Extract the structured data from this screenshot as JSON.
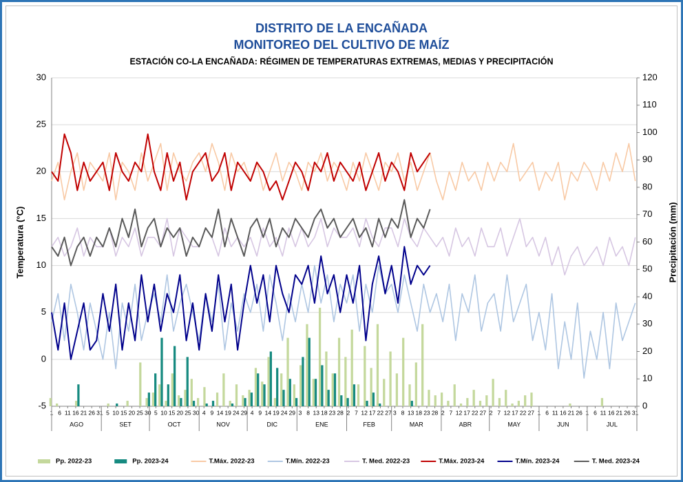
{
  "chart_data": {
    "type": "line",
    "title": "DISTRITO DE LA ENCAÑADA",
    "subtitle": "MONITOREO DEL CULTIVO DE MAÍZ",
    "caption": "ESTACIÓN CO-LA ENCAÑADA: RÉGIMEN DE TEMPERATURAS EXTREMAS, MEDIAS Y PRECIPITACIÓN",
    "ylabel": "Temperatura (°C)",
    "y2label": "Precipitación (mm)",
    "ylim": [
      -5,
      30
    ],
    "yticks": [
      -5,
      0,
      5,
      10,
      15,
      20,
      25,
      30
    ],
    "y2lim": [
      0,
      120
    ],
    "y2ticks": [
      0,
      10,
      20,
      30,
      40,
      50,
      60,
      70,
      80,
      90,
      100,
      110,
      120
    ],
    "xlim": [
      1,
      366
    ],
    "xticks": [
      1,
      6,
      11,
      16,
      21,
      26,
      31,
      {
        "value": 36,
        "label": "5"
      },
      {
        "value": 41,
        "label": "10"
      },
      {
        "value": 46,
        "label": "15"
      },
      {
        "value": 51,
        "label": "20"
      },
      {
        "value": 56,
        "label": "25"
      },
      {
        "value": 61,
        "label": "30"
      },
      {
        "value": 66,
        "label": "5"
      },
      {
        "value": 71,
        "label": "10"
      },
      {
        "value": 76,
        "label": "15"
      },
      {
        "value": 81,
        "label": "20"
      },
      {
        "value": 86,
        "label": "25"
      },
      {
        "value": 91,
        "label": "30"
      },
      {
        "value": 96,
        "label": "4"
      },
      {
        "value": 101,
        "label": "9"
      },
      {
        "value": 106,
        "label": "14"
      },
      {
        "value": 111,
        "label": "19"
      },
      {
        "value": 116,
        "label": "24"
      },
      {
        "value": 121,
        "label": "29"
      },
      {
        "value": 126,
        "label": "4"
      },
      {
        "value": 131,
        "label": "9"
      },
      {
        "value": 136,
        "label": "14"
      },
      {
        "value": 141,
        "label": "19"
      },
      {
        "value": 146,
        "label": "24"
      },
      {
        "value": 151,
        "label": "29"
      },
      {
        "value": 156,
        "label": "3"
      },
      {
        "value": 161,
        "label": "8"
      },
      {
        "value": 166,
        "label": "13"
      },
      {
        "value": 171,
        "label": "18"
      },
      {
        "value": 176,
        "label": "23"
      },
      {
        "value": 181,
        "label": "28"
      },
      {
        "value": 186,
        "label": "2"
      },
      {
        "value": 191,
        "label": "7"
      },
      {
        "value": 196,
        "label": "12"
      },
      {
        "value": 201,
        "label": "17"
      },
      {
        "value": 206,
        "label": "22"
      },
      {
        "value": 211,
        "label": "27"
      },
      {
        "value": 215,
        "label": "3"
      },
      {
        "value": 220,
        "label": "8"
      },
      {
        "value": 225,
        "label": "13"
      },
      {
        "value": 230,
        "label": "18"
      },
      {
        "value": 235,
        "label": "23"
      },
      {
        "value": 240,
        "label": "28"
      },
      {
        "value": 245,
        "label": "2"
      },
      {
        "value": 250,
        "label": "7"
      },
      {
        "value": 255,
        "label": "12"
      },
      {
        "value": 260,
        "label": "17"
      },
      {
        "value": 265,
        "label": "22"
      },
      {
        "value": 270,
        "label": "27"
      },
      {
        "value": 275,
        "label": "2"
      },
      {
        "value": 280,
        "label": "7"
      },
      {
        "value": 285,
        "label": "12"
      },
      {
        "value": 290,
        "label": "17"
      },
      {
        "value": 295,
        "label": "22"
      },
      {
        "value": 300,
        "label": "27"
      },
      {
        "value": 305,
        "label": "1"
      },
      {
        "value": 310,
        "label": "6"
      },
      {
        "value": 315,
        "label": "11"
      },
      {
        "value": 320,
        "label": "16"
      },
      {
        "value": 325,
        "label": "21"
      },
      {
        "value": 330,
        "label": "26"
      },
      {
        "value": 335,
        "label": "1"
      },
      {
        "value": 340,
        "label": "6"
      },
      {
        "value": 345,
        "label": "11"
      },
      {
        "value": 350,
        "label": "16"
      },
      {
        "value": 355,
        "label": "21"
      },
      {
        "value": 360,
        "label": "26"
      },
      {
        "value": 365,
        "label": "31"
      }
    ],
    "month_labels": [
      "AGO",
      "SET",
      "OCT",
      "NOV",
      "DIC",
      "ENE",
      "FEB",
      "MAR",
      "ABR",
      "MAY",
      "JUN",
      "JUL"
    ],
    "month_edges": [
      1,
      32,
      62,
      93,
      123,
      154,
      185,
      213,
      244,
      274,
      305,
      335,
      366
    ],
    "grid": true,
    "x": [
      1,
      5,
      9,
      13,
      17,
      21,
      25,
      29,
      33,
      37,
      41,
      45,
      49,
      53,
      57,
      61,
      65,
      69,
      73,
      77,
      81,
      85,
      89,
      93,
      97,
      101,
      105,
      109,
      113,
      117,
      121,
      125,
      129,
      133,
      137,
      141,
      145,
      149,
      153,
      157,
      161,
      165,
      169,
      173,
      177,
      181,
      185,
      189,
      193,
      197,
      201,
      205,
      209,
      213,
      217,
      221,
      225,
      229,
      233,
      237,
      241,
      245,
      249,
      253,
      257,
      261,
      265,
      269,
      273,
      277,
      281,
      285,
      289,
      293,
      297,
      301,
      305,
      309,
      313,
      317,
      321,
      325,
      329,
      333,
      337,
      341,
      345,
      349,
      353,
      357,
      361,
      365
    ],
    "series": [
      {
        "name": "Pp. 2022-23",
        "type": "bar",
        "axis": "y2",
        "color": "#c4d89c",
        "values": [
          3,
          1,
          0,
          0,
          2,
          0,
          0,
          0,
          0,
          1,
          0,
          0,
          2,
          0,
          16,
          3,
          5,
          8,
          2,
          12,
          4,
          6,
          10,
          3,
          7,
          0,
          5,
          12,
          2,
          8,
          4,
          6,
          14,
          9,
          18,
          3,
          12,
          25,
          8,
          15,
          30,
          10,
          36,
          20,
          12,
          25,
          18,
          28,
          8,
          22,
          14,
          30,
          10,
          20,
          12,
          25,
          8,
          16,
          30,
          6,
          4,
          5,
          2,
          8,
          1,
          3,
          6,
          2,
          4,
          10,
          3,
          6,
          1,
          2,
          4,
          5,
          0,
          0,
          0,
          0,
          0,
          1,
          0,
          0,
          0,
          0,
          3,
          0,
          0,
          0,
          0,
          0
        ]
      },
      {
        "name": "Pp. 2023-24",
        "type": "bar",
        "axis": "y2",
        "color": "#168a80",
        "values": [
          0,
          0,
          0,
          0,
          8,
          0,
          0,
          0,
          0,
          0,
          1,
          0,
          0,
          0,
          0,
          5,
          12,
          25,
          8,
          22,
          3,
          18,
          2,
          0,
          1,
          2,
          0,
          0,
          1,
          0,
          3,
          5,
          12,
          8,
          20,
          14,
          6,
          10,
          3,
          18,
          25,
          10,
          15,
          6,
          12,
          4,
          3,
          8,
          0,
          2,
          5,
          1,
          0,
          0,
          0,
          0,
          2,
          0,
          0,
          0,
          null,
          null,
          null,
          null,
          null,
          null,
          null,
          null,
          null,
          null,
          null,
          null,
          null,
          null,
          null,
          null,
          null,
          null,
          null,
          null,
          null,
          null,
          null,
          null,
          null,
          null,
          null,
          null,
          null,
          null,
          null,
          null
        ]
      },
      {
        "name": "T.Máx. 2022-23",
        "color": "#f8c9a4",
        "values": [
          19,
          21,
          17,
          20,
          22,
          18,
          21,
          20,
          19,
          22,
          17,
          21,
          20,
          18,
          22,
          19,
          21,
          23,
          18,
          22,
          20,
          19,
          21,
          22,
          20,
          23,
          21,
          18,
          22,
          20,
          21,
          19,
          21,
          18,
          20,
          22,
          19,
          21,
          20,
          18,
          21,
          20,
          22,
          19,
          21,
          20,
          18,
          21,
          19,
          22,
          20,
          18,
          21,
          20,
          22,
          19,
          21,
          18,
          20,
          22,
          19,
          17,
          20,
          18,
          21,
          19,
          20,
          18,
          21,
          19,
          21,
          20,
          23,
          19,
          20,
          21,
          18,
          20,
          19,
          21,
          17,
          20,
          19,
          21,
          20,
          18,
          21,
          19,
          22,
          20,
          23,
          19
        ]
      },
      {
        "name": "T.Mín. 2022-23",
        "color": "#aec6e2",
        "values": [
          4,
          7,
          2,
          8,
          5,
          1,
          6,
          3,
          0,
          5,
          -1,
          6,
          3,
          8,
          2,
          5,
          7,
          4,
          9,
          3,
          6,
          8,
          5,
          2,
          7,
          4,
          8,
          1,
          6,
          3,
          7,
          5,
          8,
          3,
          9,
          6,
          2,
          7,
          4,
          8,
          5,
          10,
          6,
          9,
          4,
          8,
          6,
          9,
          3,
          8,
          5,
          10,
          7,
          8,
          5,
          9,
          6,
          3,
          8,
          5,
          7,
          4,
          8,
          2,
          7,
          5,
          9,
          3,
          6,
          7,
          3,
          9,
          4,
          6,
          8,
          2,
          5,
          1,
          7,
          -1,
          4,
          0,
          6,
          -2,
          3,
          0,
          5,
          -1,
          6,
          2,
          4,
          6
        ]
      },
      {
        "name": "T. Med. 2022-23",
        "color": "#d6c6e2",
        "values": [
          12,
          13,
          11,
          12,
          14,
          11,
          13,
          12,
          12,
          14,
          11,
          13,
          12,
          14,
          11,
          13,
          13,
          12,
          15,
          11,
          14,
          13,
          12,
          12,
          14,
          13,
          11,
          14,
          12,
          13,
          12,
          13,
          11,
          14,
          12,
          13,
          11,
          14,
          12,
          14,
          12,
          13,
          15,
          12,
          14,
          13,
          13,
          14,
          12,
          15,
          13,
          12,
          14,
          14,
          12,
          15,
          13,
          12,
          14,
          13,
          12,
          13,
          11,
          14,
          12,
          13,
          11,
          14,
          12,
          12,
          14,
          11,
          13,
          15,
          12,
          13,
          11,
          13,
          10,
          12,
          9,
          11,
          12,
          10,
          11,
          12,
          10,
          13,
          11,
          12,
          10,
          13
        ]
      },
      {
        "name": "T.Máx. 2023-24",
        "color": "#c00000",
        "values": [
          20,
          19,
          24,
          22,
          18,
          21,
          19,
          20,
          21,
          18,
          22,
          20,
          19,
          21,
          20,
          24,
          20,
          18,
          22,
          19,
          21,
          17,
          20,
          21,
          22,
          19,
          20,
          22,
          18,
          21,
          20,
          19,
          21,
          20,
          18,
          19,
          17,
          19,
          21,
          20,
          18,
          21,
          20,
          22,
          19,
          21,
          20,
          19,
          21,
          18,
          20,
          22,
          19,
          21,
          20,
          18,
          22,
          20,
          21,
          22,
          null,
          null,
          null,
          null,
          null,
          null,
          null,
          null,
          null,
          null,
          null,
          null,
          null,
          null,
          null,
          null,
          null,
          null,
          null,
          null,
          null,
          null,
          null,
          null,
          null,
          null,
          null,
          null,
          null,
          null,
          null,
          null
        ]
      },
      {
        "name": "T.Mín. 2023-24",
        "color": "#00008b",
        "values": [
          5,
          1,
          6,
          0,
          3,
          6,
          1,
          2,
          7,
          3,
          8,
          1,
          6,
          2,
          9,
          4,
          8,
          3,
          7,
          5,
          9,
          2,
          6,
          1,
          7,
          3,
          9,
          4,
          8,
          1,
          6,
          10,
          6,
          9,
          4,
          10,
          7,
          5,
          9,
          8,
          10,
          6,
          11,
          7,
          9,
          5,
          9,
          6,
          10,
          2,
          8,
          11,
          7,
          10,
          6,
          12,
          8,
          10,
          9,
          10,
          null,
          null,
          null,
          null,
          null,
          null,
          null,
          null,
          null,
          null,
          null,
          null,
          null,
          null,
          null,
          null,
          null,
          null,
          null,
          null,
          null,
          null,
          null,
          null,
          null,
          null,
          null,
          null,
          null,
          null,
          null,
          null
        ]
      },
      {
        "name": "T. Med. 2023-24",
        "color": "#595959",
        "values": [
          12,
          11,
          13,
          10,
          12,
          13,
          11,
          13,
          12,
          14,
          12,
          15,
          13,
          16,
          12,
          14,
          15,
          12,
          14,
          13,
          14,
          11,
          13,
          12,
          14,
          13,
          16,
          12,
          15,
          13,
          11,
          14,
          15,
          13,
          15,
          12,
          14,
          13,
          15,
          14,
          13,
          15,
          16,
          14,
          15,
          13,
          14,
          15,
          13,
          14,
          12,
          15,
          13,
          15,
          14,
          17,
          13,
          15,
          14,
          16,
          null,
          null,
          null,
          null,
          null,
          null,
          null,
          null,
          null,
          null,
          null,
          null,
          null,
          null,
          null,
          null,
          null,
          null,
          null,
          null,
          null,
          null,
          null,
          null,
          null,
          null,
          null,
          null,
          null,
          null,
          null,
          null
        ]
      }
    ]
  }
}
